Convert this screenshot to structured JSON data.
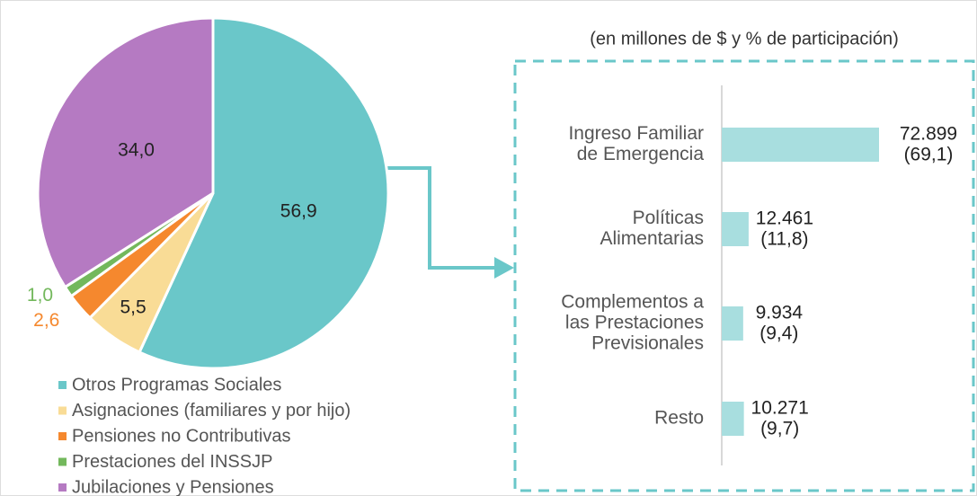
{
  "chart_data": [
    {
      "type": "pie",
      "categories": [
        "Otros Programas Sociales",
        "Asignaciones (familiares y por hijo)",
        "Pensiones no Contributivas",
        "Prestaciones del INSSJP",
        "Jubilaciones y Pensiones"
      ],
      "values": [
        56.9,
        5.5,
        2.6,
        1.0,
        34.0
      ],
      "value_labels": [
        "56,9",
        "5,5",
        "2,6",
        "1,0",
        "34,0"
      ],
      "colors": [
        "#6ac7c9",
        "#f9dc96",
        "#f5882e",
        "#73b85c",
        "#b57ac2"
      ]
    },
    {
      "type": "bar",
      "subtitle": "(en millones de $ y % de participación)",
      "categories": [
        [
          "Ingreso Familiar",
          "de Emergencia"
        ],
        [
          "Políticas",
          "Alimentarias"
        ],
        [
          "Complementos a",
          "las Prestaciones",
          "Previsionales"
        ],
        [
          "Resto"
        ]
      ],
      "values": [
        72899,
        12461,
        9934,
        10271
      ],
      "value_labels": [
        "72.899",
        "12.461",
        "9.934",
        "10.271"
      ],
      "shares": [
        69.1,
        11.8,
        9.4,
        9.7
      ],
      "share_labels": [
        "(69,1)",
        "(11,8)",
        "(9,4)",
        "(9,7)"
      ],
      "color": "#a8dedf"
    }
  ]
}
